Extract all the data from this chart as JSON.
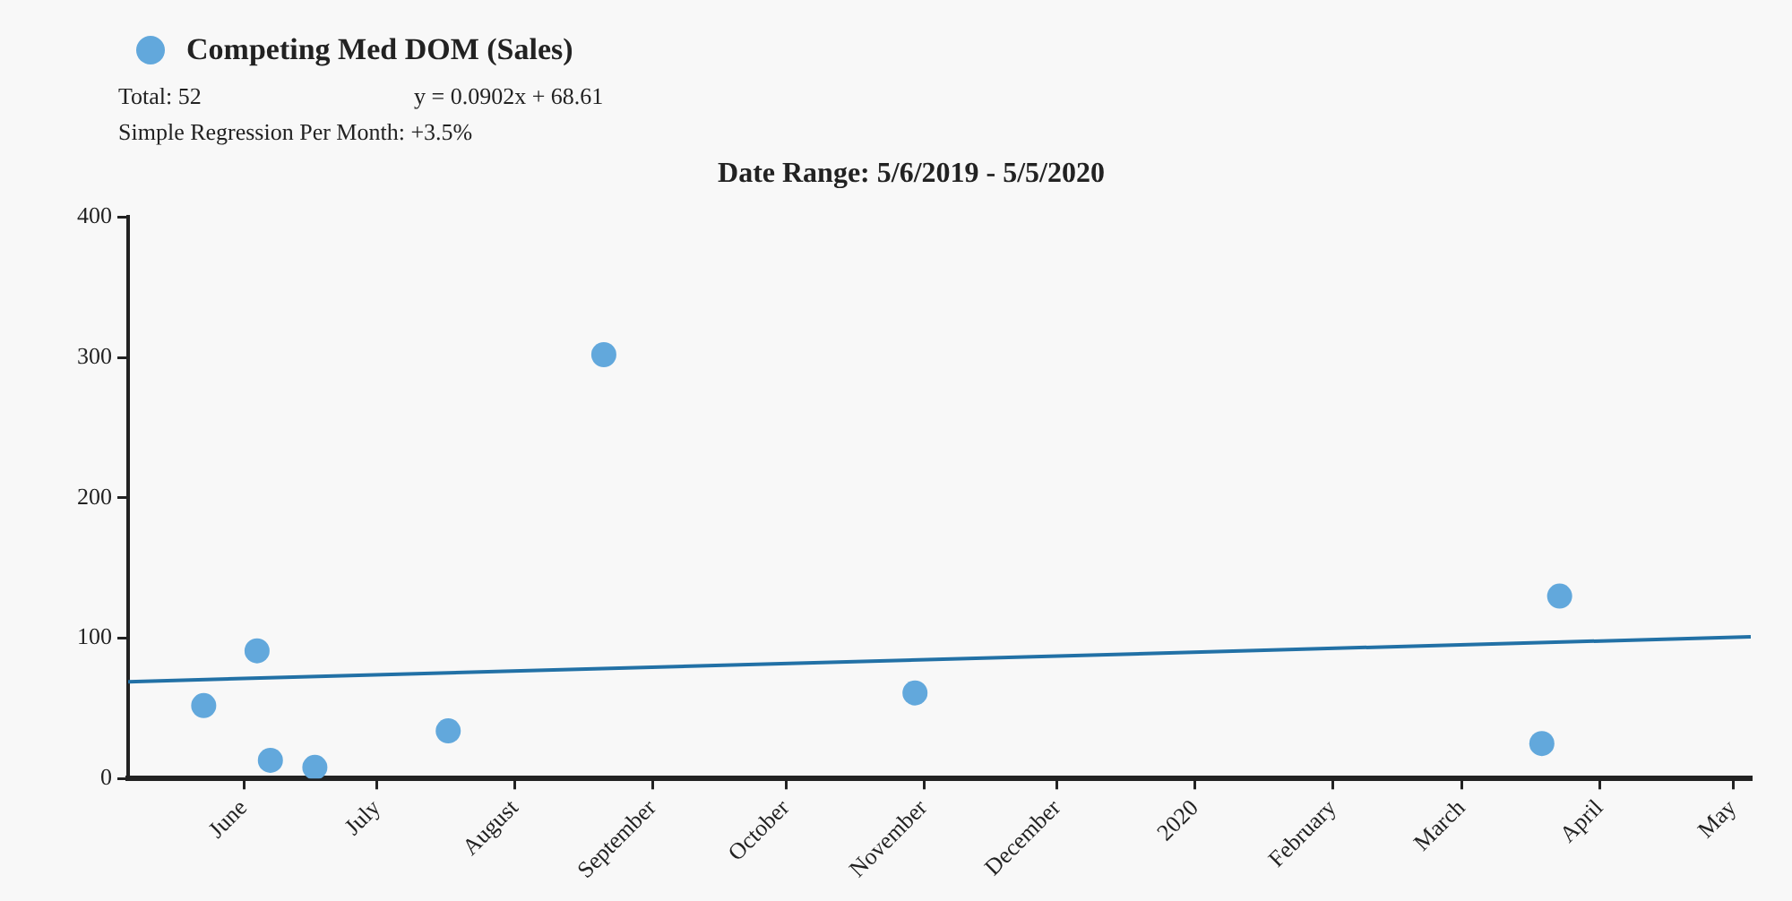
{
  "chart_data": {
    "type": "scatter",
    "title": "Date Range: 5/6/2019 - 5/5/2020",
    "annotations": [
      "Total: 52",
      "y = 0.0902x + 68.61",
      "Simple Regression Per Month: +3.5%"
    ],
    "series": [
      {
        "name": "Competing Med DOM (Sales)",
        "color": "#62a8dc",
        "marker": "circle",
        "x": [
          "2019-05-23",
          "2019-06-04",
          "2019-06-07",
          "2019-06-17",
          "2019-07-17",
          "2019-08-21",
          "2019-10-30",
          "2020-03-19",
          "2020-03-23"
        ],
        "values": [
          52,
          91,
          13,
          8,
          34,
          302,
          61,
          25,
          130
        ]
      },
      {
        "type": "line",
        "color": "#2271a6",
        "marker": "none",
        "x": [
          "2019-05-06",
          "2020-05-05"
        ],
        "values": [
          69,
          101
        ]
      }
    ],
    "xlim": [
      "2019-05-06",
      "2020-05-05"
    ],
    "xticks": [
      {
        "value": "2019-06-01",
        "label": "June"
      },
      {
        "value": "2019-07-01",
        "label": "July"
      },
      {
        "value": "2019-08-01",
        "label": "August"
      },
      {
        "value": "2019-09-01",
        "label": "September"
      },
      {
        "value": "2019-10-01",
        "label": "October"
      },
      {
        "value": "2019-11-01",
        "label": "November"
      },
      {
        "value": "2019-12-01",
        "label": "December"
      },
      {
        "value": "2020-01-01",
        "label": "2020"
      },
      {
        "value": "2020-02-01",
        "label": "February"
      },
      {
        "value": "2020-03-01",
        "label": "March"
      },
      {
        "value": "2020-04-01",
        "label": "April"
      },
      {
        "value": "2020-05-01",
        "label": "May"
      }
    ],
    "ylim": [
      0,
      400
    ],
    "yticks": [
      0,
      100,
      200,
      300,
      400
    ],
    "grid": false,
    "legend": "top left"
  }
}
